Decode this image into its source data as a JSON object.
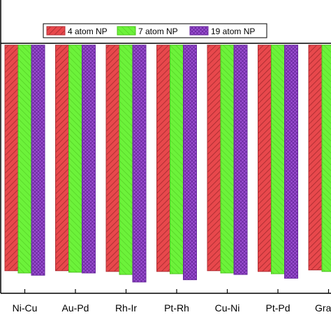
{
  "chart_data": {
    "type": "bar",
    "categories": [
      "Ni-Cu",
      "Au-Pd",
      "Rh-Ir",
      "Pt-Rh",
      "Cu-Ni",
      "Pt-Pd",
      "Graph"
    ],
    "series": [
      {
        "name": "4 atom NP",
        "values": [
          -3.0,
          -3.0,
          -3.01,
          -3.01,
          -3.0,
          -3.01,
          -2.99
        ],
        "color": "#e8484c",
        "pattern": "diagonal-hatch"
      },
      {
        "name": "7 atom NP",
        "values": [
          -3.03,
          -3.02,
          -3.05,
          -3.04,
          -3.03,
          -3.04,
          -3.01
        ],
        "color": "#6cf23a",
        "pattern": "light-diagonal-hatch"
      },
      {
        "name": "19 atom NP",
        "values": [
          -3.06,
          -3.03,
          -3.15,
          -3.12,
          -3.05,
          -3.1,
          null
        ],
        "color": "#9d4fd4",
        "pattern": "crosshatch"
      }
    ],
    "ylim": [
      -3.3,
      0.6
    ],
    "legend_position": "top-center",
    "grid": false
  }
}
